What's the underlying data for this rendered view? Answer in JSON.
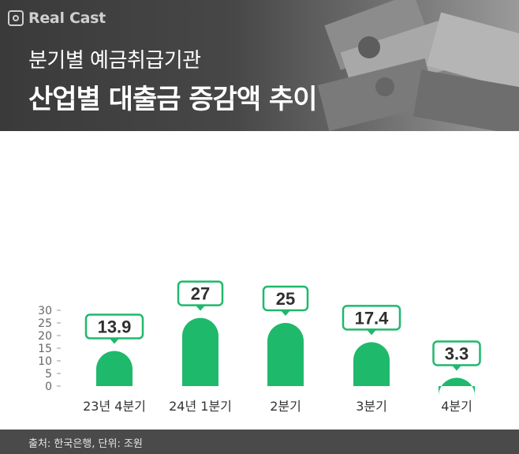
{
  "header": {
    "brand": "Real Cast",
    "title_line1": "분기별 예금취급기관",
    "title_line2": "산업별 대출금 증감액 추이"
  },
  "chart_data": {
    "type": "bar",
    "categories": [
      "23년 4분기",
      "24년 1분기",
      "2분기",
      "3분기",
      "4분기"
    ],
    "values": [
      13.9,
      27,
      25,
      17.4,
      3.3
    ],
    "value_labels": [
      "13.9",
      "27",
      "25",
      "17.4",
      "3.3"
    ],
    "y_ticks": [
      "0",
      "5",
      "10",
      "15",
      "20",
      "25",
      "30"
    ],
    "ylim": [
      0,
      30
    ],
    "grid": false,
    "bar_color": "#1fb96c",
    "label_border_color": "#1fb96c"
  },
  "footer": {
    "source": "출처: 한국은행, 단위: 조원"
  }
}
